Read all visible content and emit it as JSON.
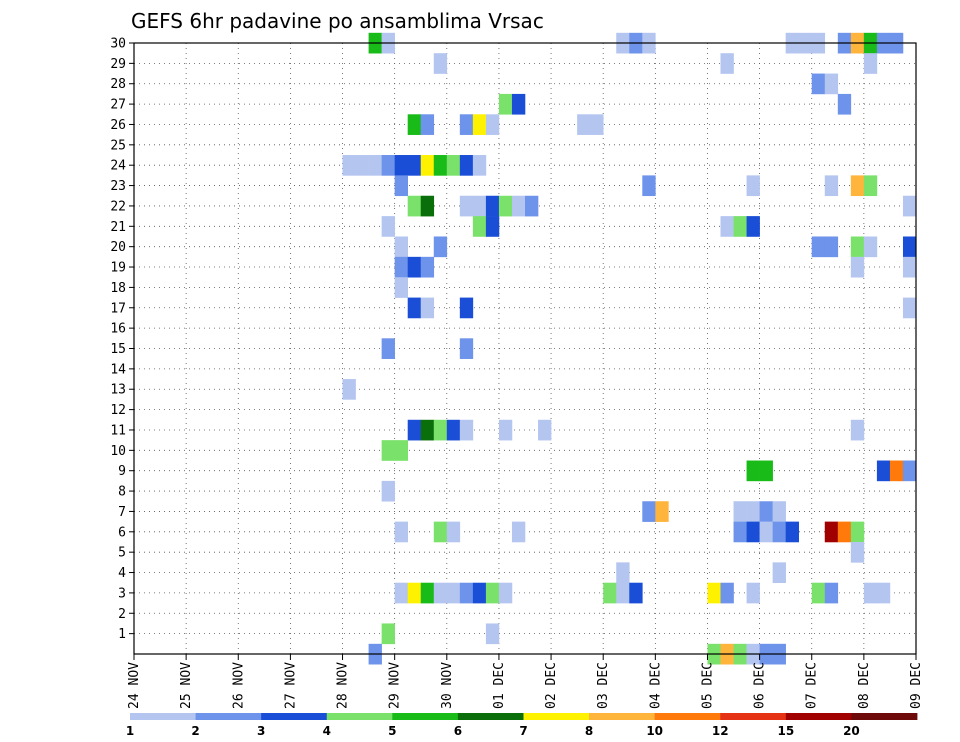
{
  "chart_data": {
    "type": "heatmap",
    "title": "GEFS 6hr padavine po ansamblima Vrsac",
    "xlabel": "",
    "ylabel": "",
    "y_ticks": [
      "1",
      "2",
      "3",
      "4",
      "5",
      "6",
      "7",
      "8",
      "9",
      "10",
      "11",
      "12",
      "13",
      "14",
      "15",
      "16",
      "17",
      "18",
      "19",
      "20",
      "21",
      "22",
      "23",
      "24",
      "25",
      "26",
      "27",
      "28",
      "29",
      "30"
    ],
    "x_ticks": [
      "24 NOV",
      "25 NOV",
      "26 NOV",
      "27 NOV",
      "28 NOV",
      "29 NOV",
      "30 NOV",
      "01 DEC",
      "02 DEC",
      "03 DEC",
      "04 DEC",
      "05 DEC",
      "06 DEC",
      "07 DEC",
      "08 DEC",
      "09 DEC"
    ],
    "x_range_steps": [
      0,
      60
    ],
    "y_range": [
      0,
      30
    ],
    "grid": true,
    "legend_position": "bottom",
    "color_levels": [
      {
        "from": "1",
        "color": "#b4c6f0"
      },
      {
        "from": "2",
        "color": "#6e93ea"
      },
      {
        "from": "3",
        "color": "#1a4ed6"
      },
      {
        "from": "4",
        "color": "#7ae26a"
      },
      {
        "from": "5",
        "color": "#19bb19"
      },
      {
        "from": "6",
        "color": "#0a6e0a"
      },
      {
        "from": "7",
        "color": "#fff200"
      },
      {
        "from": "8",
        "color": "#ffb43c"
      },
      {
        "from": "10",
        "color": "#ff7a0a"
      },
      {
        "from": "12",
        "color": "#e63214"
      },
      {
        "from": "15",
        "color": "#a00000"
      },
      {
        "from": "20",
        "color": "#6e0a0a"
      }
    ],
    "legend_labels": [
      "1",
      "2",
      "3",
      "4",
      "5",
      "6",
      "7",
      "8",
      "10",
      "12",
      "15",
      "20"
    ],
    "cells": [
      {
        "member": 30,
        "step": 18,
        "level": 5
      },
      {
        "member": 30,
        "step": 19,
        "level": 1
      },
      {
        "member": 30,
        "step": 37,
        "level": 1
      },
      {
        "member": 30,
        "step": 38,
        "level": 2
      },
      {
        "member": 30,
        "step": 39,
        "level": 1
      },
      {
        "member": 30,
        "step": 50,
        "level": 1
      },
      {
        "member": 30,
        "step": 51,
        "level": 1
      },
      {
        "member": 30,
        "step": 52,
        "level": 1
      },
      {
        "member": 30,
        "step": 54,
        "level": 2
      },
      {
        "member": 30,
        "step": 55,
        "level": 8
      },
      {
        "member": 30,
        "step": 56,
        "level": 5
      },
      {
        "member": 30,
        "step": 57,
        "level": 2
      },
      {
        "member": 30,
        "step": 58,
        "level": 2
      },
      {
        "member": 29,
        "step": 23,
        "level": 1
      },
      {
        "member": 29,
        "step": 45,
        "level": 1
      },
      {
        "member": 29,
        "step": 56,
        "level": 1
      },
      {
        "member": 28,
        "step": 52,
        "level": 2
      },
      {
        "member": 28,
        "step": 53,
        "level": 1
      },
      {
        "member": 27,
        "step": 28,
        "level": 4
      },
      {
        "member": 27,
        "step": 29,
        "level": 3
      },
      {
        "member": 27,
        "step": 54,
        "level": 2
      },
      {
        "member": 26,
        "step": 21,
        "level": 5
      },
      {
        "member": 26,
        "step": 22,
        "level": 2
      },
      {
        "member": 26,
        "step": 25,
        "level": 2
      },
      {
        "member": 26,
        "step": 26,
        "level": 7
      },
      {
        "member": 26,
        "step": 27,
        "level": 1
      },
      {
        "member": 26,
        "step": 34,
        "level": 1
      },
      {
        "member": 26,
        "step": 35,
        "level": 1
      },
      {
        "member": 24,
        "step": 16,
        "level": 1
      },
      {
        "member": 24,
        "step": 17,
        "level": 1
      },
      {
        "member": 24,
        "step": 18,
        "level": 1
      },
      {
        "member": 24,
        "step": 19,
        "level": 2
      },
      {
        "member": 24,
        "step": 20,
        "level": 3
      },
      {
        "member": 24,
        "step": 21,
        "level": 3
      },
      {
        "member": 24,
        "step": 22,
        "level": 7
      },
      {
        "member": 24,
        "step": 23,
        "level": 5
      },
      {
        "member": 24,
        "step": 24,
        "level": 4
      },
      {
        "member": 24,
        "step": 25,
        "level": 3
      },
      {
        "member": 24,
        "step": 26,
        "level": 1
      },
      {
        "member": 23,
        "step": 20,
        "level": 2
      },
      {
        "member": 23,
        "step": 39,
        "level": 2
      },
      {
        "member": 23,
        "step": 47,
        "level": 1
      },
      {
        "member": 23,
        "step": 53,
        "level": 1
      },
      {
        "member": 23,
        "step": 55,
        "level": 8
      },
      {
        "member": 23,
        "step": 56,
        "level": 4
      },
      {
        "member": 22,
        "step": 21,
        "level": 4
      },
      {
        "member": 22,
        "step": 22,
        "level": 6
      },
      {
        "member": 22,
        "step": 25,
        "level": 1
      },
      {
        "member": 22,
        "step": 26,
        "level": 1
      },
      {
        "member": 22,
        "step": 27,
        "level": 3
      },
      {
        "member": 22,
        "step": 28,
        "level": 4
      },
      {
        "member": 22,
        "step": 29,
        "level": 1
      },
      {
        "member": 22,
        "step": 30,
        "level": 2
      },
      {
        "member": 22,
        "step": 59,
        "level": 1
      },
      {
        "member": 21,
        "step": 19,
        "level": 1
      },
      {
        "member": 21,
        "step": 26,
        "level": 4
      },
      {
        "member": 21,
        "step": 27,
        "level": 3
      },
      {
        "member": 21,
        "step": 45,
        "level": 1
      },
      {
        "member": 21,
        "step": 46,
        "level": 4
      },
      {
        "member": 21,
        "step": 47,
        "level": 3
      },
      {
        "member": 20,
        "step": 20,
        "level": 1
      },
      {
        "member": 20,
        "step": 23,
        "level": 2
      },
      {
        "member": 20,
        "step": 52,
        "level": 2
      },
      {
        "member": 20,
        "step": 53,
        "level": 2
      },
      {
        "member": 20,
        "step": 55,
        "level": 4
      },
      {
        "member": 20,
        "step": 56,
        "level": 1
      },
      {
        "member": 20,
        "step": 59,
        "level": 3
      },
      {
        "member": 19,
        "step": 20,
        "level": 2
      },
      {
        "member": 19,
        "step": 21,
        "level": 3
      },
      {
        "member": 19,
        "step": 22,
        "level": 2
      },
      {
        "member": 19,
        "step": 55,
        "level": 1
      },
      {
        "member": 19,
        "step": 59,
        "level": 1
      },
      {
        "member": 18,
        "step": 20,
        "level": 1
      },
      {
        "member": 17,
        "step": 21,
        "level": 3
      },
      {
        "member": 17,
        "step": 22,
        "level": 1
      },
      {
        "member": 17,
        "step": 25,
        "level": 3
      },
      {
        "member": 17,
        "step": 59,
        "level": 1
      },
      {
        "member": 15,
        "step": 19,
        "level": 2
      },
      {
        "member": 15,
        "step": 25,
        "level": 2
      },
      {
        "member": 13,
        "step": 16,
        "level": 1
      },
      {
        "member": 11,
        "step": 21,
        "level": 3
      },
      {
        "member": 11,
        "step": 22,
        "level": 6
      },
      {
        "member": 11,
        "step": 23,
        "level": 4
      },
      {
        "member": 11,
        "step": 24,
        "level": 3
      },
      {
        "member": 11,
        "step": 25,
        "level": 1
      },
      {
        "member": 11,
        "step": 28,
        "level": 1
      },
      {
        "member": 11,
        "step": 31,
        "level": 1
      },
      {
        "member": 11,
        "step": 55,
        "level": 1
      },
      {
        "member": 10,
        "step": 19,
        "level": 4
      },
      {
        "member": 10,
        "step": 20,
        "level": 4
      },
      {
        "member": 9,
        "step": 47,
        "level": 5
      },
      {
        "member": 9,
        "step": 48,
        "level": 5
      },
      {
        "member": 9,
        "step": 57,
        "level": 3
      },
      {
        "member": 9,
        "step": 58,
        "level": 10
      },
      {
        "member": 9,
        "step": 59,
        "level": 2
      },
      {
        "member": 8,
        "step": 19,
        "level": 1
      },
      {
        "member": 7,
        "step": 39,
        "level": 2
      },
      {
        "member": 7,
        "step": 40,
        "level": 8
      },
      {
        "member": 7,
        "step": 46,
        "level": 1
      },
      {
        "member": 7,
        "step": 47,
        "level": 1
      },
      {
        "member": 7,
        "step": 48,
        "level": 2
      },
      {
        "member": 7,
        "step": 49,
        "level": 1
      },
      {
        "member": 6,
        "step": 20,
        "level": 1
      },
      {
        "member": 6,
        "step": 23,
        "level": 4
      },
      {
        "member": 6,
        "step": 24,
        "level": 1
      },
      {
        "member": 6,
        "step": 29,
        "level": 1
      },
      {
        "member": 6,
        "step": 46,
        "level": 2
      },
      {
        "member": 6,
        "step": 47,
        "level": 3
      },
      {
        "member": 6,
        "step": 48,
        "level": 1
      },
      {
        "member": 6,
        "step": 49,
        "level": 2
      },
      {
        "member": 6,
        "step": 50,
        "level": 3
      },
      {
        "member": 6,
        "step": 53,
        "level": 15
      },
      {
        "member": 6,
        "step": 54,
        "level": 10
      },
      {
        "member": 6,
        "step": 55,
        "level": 4
      },
      {
        "member": 5,
        "step": 55,
        "level": 1
      },
      {
        "member": 4,
        "step": 37,
        "level": 1
      },
      {
        "member": 4,
        "step": 49,
        "level": 1
      },
      {
        "member": 3,
        "step": 20,
        "level": 1
      },
      {
        "member": 3,
        "step": 21,
        "level": 7
      },
      {
        "member": 3,
        "step": 22,
        "level": 5
      },
      {
        "member": 3,
        "step": 23,
        "level": 1
      },
      {
        "member": 3,
        "step": 24,
        "level": 1
      },
      {
        "member": 3,
        "step": 25,
        "level": 2
      },
      {
        "member": 3,
        "step": 26,
        "level": 3
      },
      {
        "member": 3,
        "step": 27,
        "level": 4
      },
      {
        "member": 3,
        "step": 28,
        "level": 1
      },
      {
        "member": 3,
        "step": 36,
        "level": 4
      },
      {
        "member": 3,
        "step": 37,
        "level": 1
      },
      {
        "member": 3,
        "step": 38,
        "level": 3
      },
      {
        "member": 3,
        "step": 44,
        "level": 7
      },
      {
        "member": 3,
        "step": 45,
        "level": 2
      },
      {
        "member": 3,
        "step": 47,
        "level": 1
      },
      {
        "member": 3,
        "step": 52,
        "level": 4
      },
      {
        "member": 3,
        "step": 53,
        "level": 2
      },
      {
        "member": 3,
        "step": 56,
        "level": 1
      },
      {
        "member": 3,
        "step": 57,
        "level": 1
      },
      {
        "member": 1,
        "step": 19,
        "level": 4
      },
      {
        "member": 1,
        "step": 27,
        "level": 1
      },
      {
        "member": 0,
        "step": 18,
        "level": 2
      },
      {
        "member": 0,
        "step": 44,
        "level": 4
      },
      {
        "member": 0,
        "step": 45,
        "level": 8
      },
      {
        "member": 0,
        "step": 46,
        "level": 4
      },
      {
        "member": 0,
        "step": 47,
        "level": 1
      },
      {
        "member": 0,
        "step": 48,
        "level": 2
      },
      {
        "member": 0,
        "step": 49,
        "level": 2
      }
    ]
  }
}
